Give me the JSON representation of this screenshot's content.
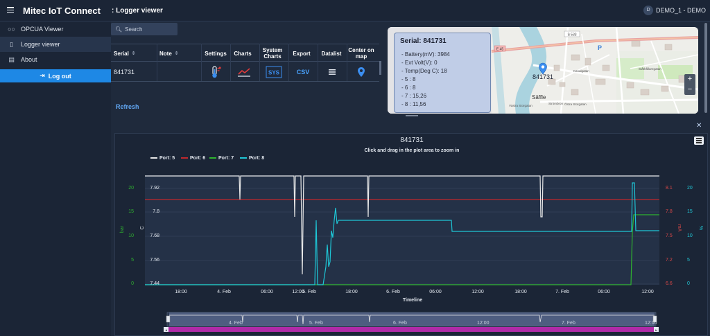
{
  "topbar": {
    "app_title": "Mitec IoT Connect",
    "page_title": ": Logger viewer",
    "user_initial": "D",
    "user_name": "DEMO_1 - DEMO"
  },
  "sidebar": {
    "items": [
      {
        "label": "OPCUA Viewer",
        "icon": "glasses-icon"
      },
      {
        "label": "Logger viewer",
        "icon": "document-icon"
      },
      {
        "label": "About",
        "icon": "info-document-icon"
      }
    ],
    "logout_label": "Log out"
  },
  "search": {
    "placeholder": "Search"
  },
  "table": {
    "headers": [
      "Serial",
      "Note",
      "Settings",
      "Charts",
      "System Charts",
      "Export",
      "Datalist",
      "Center on map"
    ],
    "row": {
      "serial": "841731",
      "note": "",
      "export_label": "CSV",
      "system_label": "SYS"
    },
    "refresh_label": "Refresh"
  },
  "map": {
    "popup_title": "Serial: 841731",
    "popup_lines": [
      "- Battery(mV): 3984",
      "- Ext Volt(V): 0",
      "- Temp(Deg C): 18",
      "- 5 : 8",
      "- 6 : 8",
      "- 7 : 15,26",
      "- 8 : 11,56"
    ],
    "marker_label": "841731",
    "road_labels": [
      "S 533",
      "E 45",
      "Säffle",
      "Strömbron",
      "Västra Storgatan",
      "Östra Storgatan",
      "Kanalgatan",
      "Ståthållaregatan"
    ]
  },
  "chart_data": {
    "type": "line",
    "title": "841731",
    "subtitle": "Click and drag in the plot area to zoom in",
    "xlabel": "Timeline",
    "x_ticks": [
      "18:00",
      "4. Feb",
      "06:00",
      "12:00",
      "18:00",
      "5. Feb",
      "06:00",
      "12:00",
      "18:00",
      "6. Feb",
      "06:00",
      "12:00",
      "18:00",
      "7. Feb",
      "06:00",
      "12:00"
    ],
    "navigator_ticks": [
      "4. Feb",
      "5. Feb",
      "6. Feb",
      "12:00",
      "7. Feb",
      "12:00"
    ],
    "axes": [
      {
        "label": "bar",
        "color": "#2fb52f",
        "ticks": [
          "0",
          "5",
          "10",
          "15",
          "20"
        ]
      },
      {
        "label": "C",
        "color": "#e6ebf2",
        "ticks": [
          "7.44",
          "7.56",
          "7.68",
          "7.8",
          "7.92"
        ]
      },
      {
        "label": "mA",
        "color": "#d94848",
        "ticks": [
          "6.6",
          "7.2",
          "7.5",
          "7.8",
          "8.1"
        ]
      },
      {
        "label": "%",
        "color": "#22c7d6",
        "ticks": [
          "0",
          "5",
          "10",
          "15",
          "20"
        ]
      }
    ],
    "series": [
      {
        "name": "Port: 5",
        "color": "#e8e8e8"
      },
      {
        "name": "Port: 6",
        "color": "#c0282d"
      },
      {
        "name": "Port: 7",
        "color": "#2fb52f"
      },
      {
        "name": "Port: 8",
        "color": "#1ec6d6"
      }
    ]
  }
}
